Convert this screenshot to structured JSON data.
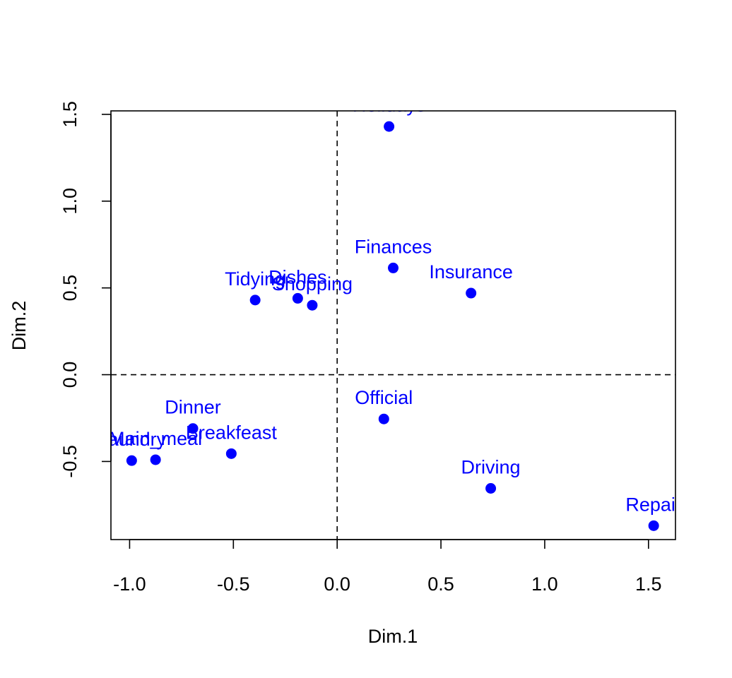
{
  "chart_data": {
    "type": "scatter",
    "title": "",
    "xlabel": "Dim.1",
    "ylabel": "Dim.2",
    "xlim": [
      -1.09,
      1.63
    ],
    "ylim": [
      -0.95,
      1.52
    ],
    "xticks": [
      -1.0,
      -0.5,
      0.0,
      0.5,
      1.0,
      1.5
    ],
    "xtick_labels": [
      "-1.0",
      "-0.5",
      "0.0",
      "0.5",
      "1.0",
      "1.5"
    ],
    "yticks": [
      -0.5,
      0.0,
      0.5,
      1.0,
      1.5
    ],
    "ytick_labels": [
      "-0.5",
      "0.0",
      "0.5",
      "1.0",
      "1.5"
    ],
    "reference_lines": {
      "x": 0,
      "y": 0,
      "style": "dashed"
    },
    "grid": false,
    "point_color": "#0000FF",
    "points": [
      {
        "label": "Laundry",
        "x": -0.99,
        "y": -0.495
      },
      {
        "label": "Main_meal",
        "x": -0.875,
        "y": -0.49
      },
      {
        "label": "Dinner",
        "x": -0.695,
        "y": -0.31
      },
      {
        "label": "Breakfeast",
        "x": -0.51,
        "y": -0.455
      },
      {
        "label": "Tidying",
        "x": -0.395,
        "y": 0.43
      },
      {
        "label": "Dishes",
        "x": -0.19,
        "y": 0.44
      },
      {
        "label": "Shopping",
        "x": -0.12,
        "y": 0.4
      },
      {
        "label": "Official",
        "x": 0.225,
        "y": -0.255
      },
      {
        "label": "Holidays",
        "x": 0.25,
        "y": 1.43
      },
      {
        "label": "Finances",
        "x": 0.27,
        "y": 0.615
      },
      {
        "label": "Insurance",
        "x": 0.645,
        "y": 0.47
      },
      {
        "label": "Driving",
        "x": 0.74,
        "y": -0.655
      },
      {
        "label": "Repair",
        "x": 1.525,
        "y": -0.87
      }
    ]
  }
}
